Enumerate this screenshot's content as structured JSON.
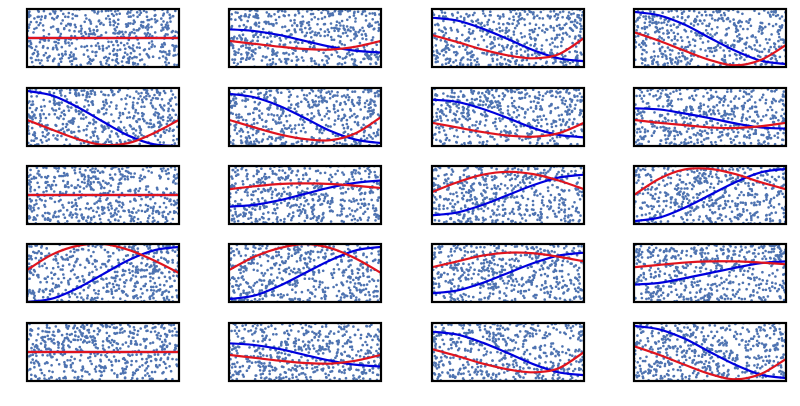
{
  "chart_data": [
    {
      "type": "line",
      "x": [
        0,
        1,
        2,
        3,
        4,
        5,
        6
      ],
      "xlim": [
        0,
        6
      ],
      "ylim": [
        0,
        1
      ],
      "series": [
        {
          "color": "#0000dd",
          "values": [
            0.5,
            0.5,
            0.5,
            0.5,
            0.5,
            0.5,
            0.5
          ]
        },
        {
          "color": "#e0141e",
          "values": [
            0.5,
            0.5,
            0.5,
            0.5,
            0.5,
            0.5,
            0.5
          ]
        }
      ]
    },
    {
      "type": "line",
      "x": [
        0,
        1,
        2,
        3,
        4,
        5,
        6
      ],
      "xlim": [
        0,
        6
      ],
      "ylim": [
        0,
        1
      ],
      "series": [
        {
          "color": "#0000dd",
          "values": [
            0.65,
            0.62,
            0.55,
            0.45,
            0.35,
            0.28,
            0.25
          ]
        },
        {
          "color": "#e0141e",
          "values": [
            0.45,
            0.4,
            0.35,
            0.31,
            0.3,
            0.35,
            0.45
          ]
        }
      ]
    },
    {
      "type": "line",
      "x": [
        0,
        1,
        2,
        3,
        4,
        5,
        6
      ],
      "xlim": [
        0,
        6
      ],
      "ylim": [
        0,
        1
      ],
      "series": [
        {
          "color": "#0000dd",
          "values": [
            0.85,
            0.8,
            0.66,
            0.48,
            0.29,
            0.15,
            0.1
          ]
        },
        {
          "color": "#e0141e",
          "values": [
            0.55,
            0.43,
            0.3,
            0.2,
            0.15,
            0.22,
            0.5
          ]
        }
      ]
    },
    {
      "type": "line",
      "x": [
        0,
        1,
        2,
        3,
        4,
        5,
        6
      ],
      "xlim": [
        0,
        6
      ],
      "ylim": [
        0,
        1
      ],
      "series": [
        {
          "color": "#0000dd",
          "values": [
            0.95,
            0.89,
            0.73,
            0.5,
            0.28,
            0.11,
            0.05
          ]
        },
        {
          "color": "#e0141e",
          "values": [
            0.6,
            0.45,
            0.28,
            0.12,
            0.03,
            0.12,
            0.38
          ]
        }
      ]
    },
    {
      "type": "line",
      "x": [
        0,
        1,
        2,
        3,
        4,
        5,
        6
      ],
      "xlim": [
        0,
        6
      ],
      "ylim": [
        0,
        1
      ],
      "series": [
        {
          "color": "#0000dd",
          "values": [
            0.95,
            0.87,
            0.67,
            0.42,
            0.18,
            0.03,
            0.0
          ]
        },
        {
          "color": "#e0141e",
          "values": [
            0.45,
            0.28,
            0.12,
            0.02,
            0.05,
            0.22,
            0.45
          ]
        }
      ]
    },
    {
      "type": "line",
      "x": [
        0,
        1,
        2,
        3,
        4,
        5,
        6
      ],
      "xlim": [
        0,
        6
      ],
      "ylim": [
        0,
        1
      ],
      "series": [
        {
          "color": "#0000dd",
          "values": [
            0.9,
            0.84,
            0.69,
            0.48,
            0.26,
            0.11,
            0.05
          ]
        },
        {
          "color": "#e0141e",
          "values": [
            0.45,
            0.32,
            0.2,
            0.12,
            0.1,
            0.22,
            0.5
          ]
        }
      ]
    },
    {
      "type": "line",
      "x": [
        0,
        1,
        2,
        3,
        4,
        5,
        6
      ],
      "xlim": [
        0,
        6
      ],
      "ylim": [
        0,
        1
      ],
      "series": [
        {
          "color": "#0000dd",
          "values": [
            0.8,
            0.76,
            0.64,
            0.48,
            0.31,
            0.19,
            0.15
          ]
        },
        {
          "color": "#e0141e",
          "values": [
            0.4,
            0.32,
            0.24,
            0.18,
            0.16,
            0.22,
            0.4
          ]
        }
      ]
    },
    {
      "type": "line",
      "x": [
        0,
        1,
        2,
        3,
        4,
        5,
        6
      ],
      "xlim": [
        0,
        6
      ],
      "ylim": [
        0,
        1
      ],
      "series": [
        {
          "color": "#0000dd",
          "values": [
            0.65,
            0.63,
            0.56,
            0.48,
            0.39,
            0.32,
            0.3
          ]
        },
        {
          "color": "#e0141e",
          "values": [
            0.45,
            0.4,
            0.36,
            0.32,
            0.31,
            0.34,
            0.4
          ]
        }
      ]
    },
    {
      "type": "line",
      "x": [
        0,
        1,
        2,
        3,
        4,
        5,
        6
      ],
      "xlim": [
        0,
        6
      ],
      "ylim": [
        0,
        1
      ],
      "series": [
        {
          "color": "#0000dd",
          "values": [
            0.5,
            0.5,
            0.5,
            0.5,
            0.5,
            0.5,
            0.5
          ]
        },
        {
          "color": "#e0141e",
          "values": [
            0.5,
            0.5,
            0.5,
            0.5,
            0.5,
            0.5,
            0.5
          ]
        }
      ]
    },
    {
      "type": "line",
      "x": [
        0,
        1,
        2,
        3,
        4,
        5,
        6
      ],
      "xlim": [
        0,
        6
      ],
      "ylim": [
        0,
        1
      ],
      "series": [
        {
          "color": "#0000dd",
          "values": [
            0.3,
            0.33,
            0.41,
            0.52,
            0.63,
            0.71,
            0.75
          ]
        },
        {
          "color": "#e0141e",
          "values": [
            0.6,
            0.65,
            0.69,
            0.7,
            0.69,
            0.66,
            0.62
          ]
        }
      ]
    },
    {
      "type": "line",
      "x": [
        0,
        1,
        2,
        3,
        4,
        5,
        6
      ],
      "xlim": [
        0,
        6
      ],
      "ylim": [
        0,
        1
      ],
      "series": [
        {
          "color": "#0000dd",
          "values": [
            0.15,
            0.2,
            0.33,
            0.5,
            0.67,
            0.8,
            0.85
          ]
        },
        {
          "color": "#e0141e",
          "values": [
            0.55,
            0.72,
            0.85,
            0.9,
            0.86,
            0.75,
            0.6
          ]
        }
      ]
    },
    {
      "type": "line",
      "x": [
        0,
        1,
        2,
        3,
        4,
        5,
        6
      ],
      "xlim": [
        0,
        6
      ],
      "ylim": [
        0,
        1
      ],
      "series": [
        {
          "color": "#0000dd",
          "values": [
            0.05,
            0.11,
            0.28,
            0.5,
            0.72,
            0.89,
            0.95
          ]
        },
        {
          "color": "#e0141e",
          "values": [
            0.5,
            0.78,
            0.94,
            0.95,
            0.86,
            0.72,
            0.6
          ]
        }
      ]
    },
    {
      "type": "line",
      "x": [
        0,
        1,
        2,
        3,
        4,
        5,
        6
      ],
      "xlim": [
        0,
        6
      ],
      "ylim": [
        0,
        1
      ],
      "series": [
        {
          "color": "#0000dd",
          "values": [
            0.0,
            0.06,
            0.24,
            0.48,
            0.72,
            0.89,
            0.95
          ]
        },
        {
          "color": "#e0141e",
          "values": [
            0.55,
            0.82,
            0.97,
            1.0,
            0.9,
            0.72,
            0.5
          ]
        }
      ]
    },
    {
      "type": "line",
      "x": [
        0,
        1,
        2,
        3,
        4,
        5,
        6
      ],
      "xlim": [
        0,
        6
      ],
      "ylim": [
        0,
        1
      ],
      "series": [
        {
          "color": "#0000dd",
          "values": [
            0.05,
            0.11,
            0.28,
            0.5,
            0.72,
            0.89,
            0.95
          ]
        },
        {
          "color": "#e0141e",
          "values": [
            0.55,
            0.78,
            0.93,
            1.0,
            0.93,
            0.75,
            0.5
          ]
        }
      ]
    },
    {
      "type": "line",
      "x": [
        0,
        1,
        2,
        3,
        4,
        5,
        6
      ],
      "xlim": [
        0,
        6
      ],
      "ylim": [
        0,
        1
      ],
      "series": [
        {
          "color": "#0000dd",
          "values": [
            0.15,
            0.2,
            0.33,
            0.5,
            0.67,
            0.8,
            0.85
          ]
        },
        {
          "color": "#e0141e",
          "values": [
            0.6,
            0.7,
            0.8,
            0.85,
            0.84,
            0.78,
            0.7
          ]
        }
      ]
    },
    {
      "type": "line",
      "x": [
        0,
        1,
        2,
        3,
        4,
        5,
        6
      ],
      "xlim": [
        0,
        6
      ],
      "ylim": [
        0,
        1
      ],
      "series": [
        {
          "color": "#0000dd",
          "values": [
            0.3,
            0.33,
            0.41,
            0.5,
            0.59,
            0.67,
            0.7
          ]
        },
        {
          "color": "#e0141e",
          "values": [
            0.6,
            0.64,
            0.68,
            0.7,
            0.7,
            0.68,
            0.65
          ]
        }
      ]
    },
    {
      "type": "line",
      "x": [
        0,
        1,
        2,
        3,
        4,
        5,
        6
      ],
      "xlim": [
        0,
        6
      ],
      "ylim": [
        0,
        1
      ],
      "series": [
        {
          "color": "#0000dd",
          "values": [
            0.5,
            0.5,
            0.5,
            0.5,
            0.5,
            0.5,
            0.5
          ]
        },
        {
          "color": "#e0141e",
          "values": [
            0.5,
            0.5,
            0.5,
            0.5,
            0.5,
            0.5,
            0.5
          ]
        }
      ]
    },
    {
      "type": "line",
      "x": [
        0,
        1,
        2,
        3,
        4,
        5,
        6
      ],
      "xlim": [
        0,
        6
      ],
      "ylim": [
        0,
        1
      ],
      "series": [
        {
          "color": "#0000dd",
          "values": [
            0.65,
            0.62,
            0.55,
            0.45,
            0.35,
            0.28,
            0.25
          ]
        },
        {
          "color": "#e0141e",
          "values": [
            0.45,
            0.4,
            0.35,
            0.31,
            0.3,
            0.35,
            0.45
          ]
        }
      ]
    },
    {
      "type": "line",
      "x": [
        0,
        1,
        2,
        3,
        4,
        5,
        6
      ],
      "xlim": [
        0,
        6
      ],
      "ylim": [
        0,
        1
      ],
      "series": [
        {
          "color": "#0000dd",
          "values": [
            0.85,
            0.8,
            0.66,
            0.48,
            0.29,
            0.15,
            0.1
          ]
        },
        {
          "color": "#e0141e",
          "values": [
            0.55,
            0.43,
            0.3,
            0.2,
            0.15,
            0.22,
            0.5
          ]
        }
      ]
    },
    {
      "type": "line",
      "x": [
        0,
        1,
        2,
        3,
        4,
        5,
        6
      ],
      "xlim": [
        0,
        6
      ],
      "ylim": [
        0,
        1
      ],
      "series": [
        {
          "color": "#0000dd",
          "values": [
            0.95,
            0.89,
            0.73,
            0.5,
            0.28,
            0.11,
            0.05
          ]
        },
        {
          "color": "#e0141e",
          "values": [
            0.6,
            0.45,
            0.28,
            0.12,
            0.03,
            0.12,
            0.38
          ]
        }
      ]
    }
  ]
}
